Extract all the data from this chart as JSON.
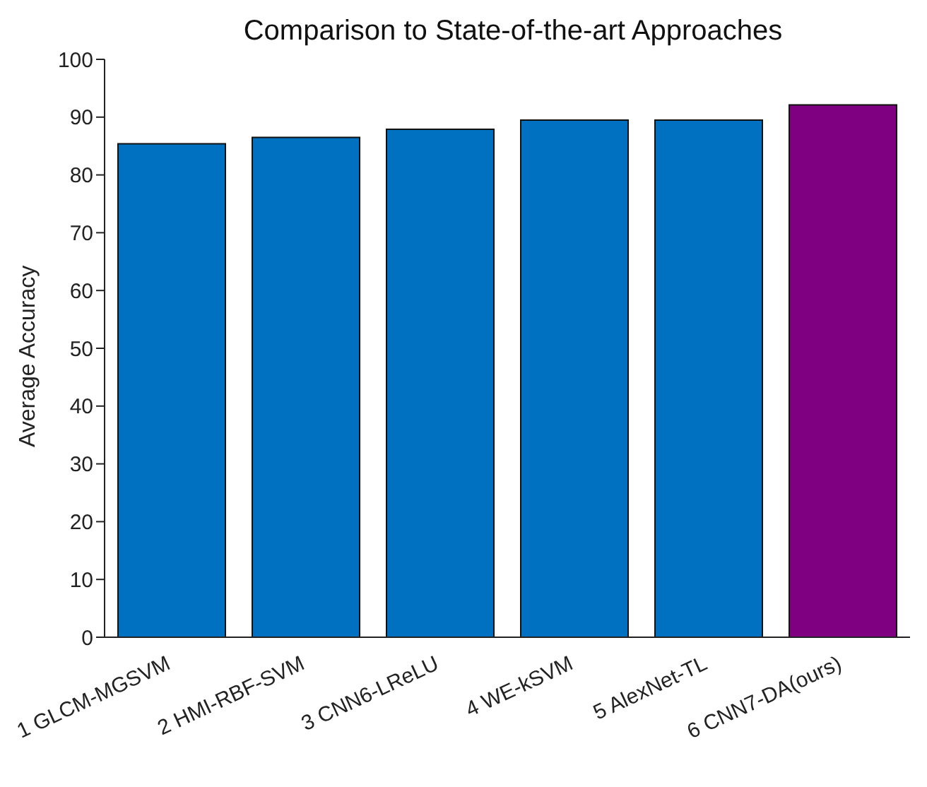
{
  "chart_data": {
    "type": "bar",
    "title": "Comparison to State-of-the-art Approaches",
    "ylabel": "Average Accuracy",
    "categories": [
      "1 GLCM-MGSVM",
      "2 HMI-RBF-SVM",
      "3 CNN6-LReLU",
      "4 WE-kSVM",
      "5 AlexNet-TL",
      "6 CNN7-DA(ours)"
    ],
    "values": [
      85.4,
      86.5,
      87.9,
      89.5,
      89.5,
      92.1
    ],
    "colors": [
      "#0070c0",
      "#0070c0",
      "#0070c0",
      "#0070c0",
      "#0070c0",
      "#7f0080"
    ],
    "ylim": [
      0,
      100
    ],
    "yticks": [
      0,
      10,
      20,
      30,
      40,
      50,
      60,
      70,
      80,
      90,
      100
    ],
    "grid": false
  }
}
